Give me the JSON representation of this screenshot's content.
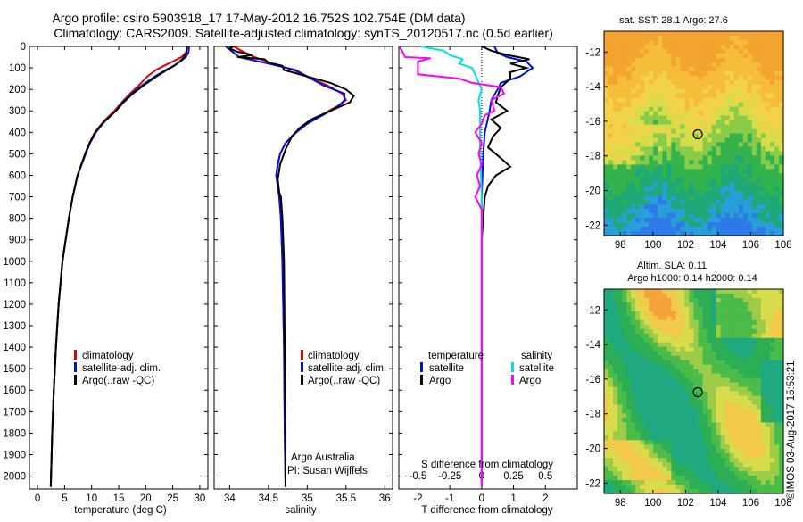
{
  "header": {
    "line1": "Argo profile: csiro 5903918_17 17-May-2012 16.752S 102.754E (DM data)",
    "line2": "Climatology: CARS2009. Satellite-adjusted climatology: synTS_20120517.nc (0.5d earlier)"
  },
  "credit": "©IMOS 03-Aug-2017 15:53:21",
  "colors": {
    "climatology": "#e00000",
    "satellite": "#0010e0",
    "argo": "#000000",
    "sal_satellite": "#00e0e0",
    "sal_argo": "#ff00ff"
  },
  "chart_data": [
    {
      "type": "line",
      "panel": "temperature",
      "xlabel": "temperature (deg C)",
      "ylabel": "",
      "xlim": [
        -1.5,
        31.5
      ],
      "ylim": [
        0,
        2060
      ],
      "xticks": [
        "0",
        "5",
        "10",
        "15",
        "20",
        "25",
        "30"
      ],
      "xtick_values": [
        0,
        5,
        10,
        15,
        20,
        25,
        30
      ],
      "yticks": [
        "0",
        "100",
        "200",
        "300",
        "400",
        "500",
        "600",
        "700",
        "800",
        "900",
        "1000",
        "1100",
        "1200",
        "1300",
        "1400",
        "1500",
        "1600",
        "1700",
        "1800",
        "1900",
        "2000"
      ],
      "ytick_values": [
        0,
        100,
        200,
        300,
        400,
        500,
        600,
        700,
        800,
        900,
        1000,
        1100,
        1200,
        1300,
        1400,
        1500,
        1600,
        1700,
        1800,
        1900,
        2000
      ],
      "legend": [
        "climatology",
        "satellite-adj. clim.",
        "Argo(..raw -QC)"
      ],
      "series": [
        {
          "name": "climatology",
          "color": "#e00000",
          "depth": [
            0,
            10,
            30,
            50,
            70,
            90,
            110,
            140,
            180,
            220,
            260,
            300,
            350,
            400,
            450,
            500,
            600,
            700,
            800,
            900,
            1000,
            1200,
            1400,
            1600,
            1800,
            2000,
            2050
          ],
          "values": [
            27.6,
            27.6,
            27.4,
            26.6,
            25.0,
            23.4,
            21.9,
            20.3,
            18.8,
            17.1,
            15.6,
            14.2,
            12.2,
            10.6,
            9.6,
            8.8,
            7.4,
            6.5,
            5.8,
            5.2,
            4.6,
            3.9,
            3.4,
            3.0,
            2.7,
            2.5,
            2.45
          ]
        },
        {
          "name": "satellite-adj. clim.",
          "color": "#0010e0",
          "depth": [
            0,
            10,
            30,
            50,
            70,
            90,
            110,
            140,
            180,
            220,
            260,
            300,
            350,
            400,
            450,
            500,
            600,
            700,
            800,
            900,
            1000,
            1200,
            1400,
            1600,
            1800,
            2000,
            2050
          ],
          "values": [
            28.0,
            28.0,
            27.9,
            27.4,
            26.4,
            25.2,
            23.7,
            21.7,
            19.4,
            17.4,
            15.8,
            14.5,
            12.4,
            10.8,
            9.7,
            8.9,
            7.4,
            6.5,
            5.8,
            5.2,
            4.6,
            3.9,
            3.4,
            3.0,
            2.7,
            2.5,
            2.45
          ]
        },
        {
          "name": "Argo(..raw -QC)",
          "color": "#000000",
          "depth": [
            0,
            10,
            30,
            50,
            70,
            90,
            110,
            140,
            180,
            220,
            260,
            300,
            350,
            400,
            450,
            500,
            600,
            700,
            800,
            900,
            1000,
            1200,
            1400,
            1600,
            1800,
            2000,
            2050
          ],
          "values": [
            27.6,
            27.6,
            27.5,
            27.1,
            26.3,
            25.3,
            23.9,
            22.0,
            19.7,
            17.6,
            15.9,
            14.5,
            12.3,
            10.7,
            9.6,
            8.8,
            7.4,
            6.5,
            5.8,
            5.2,
            4.6,
            3.9,
            3.4,
            3.0,
            2.7,
            2.5,
            2.45
          ]
        }
      ]
    },
    {
      "type": "line",
      "panel": "salinity",
      "xlabel": "salinity",
      "xlim": [
        33.8,
        36.1
      ],
      "ylim": [
        0,
        2060
      ],
      "xticks": [
        "34",
        "34.5",
        "35",
        "35.5",
        "36"
      ],
      "xtick_values": [
        34,
        34.5,
        35,
        35.5,
        36
      ],
      "legend": [
        "climatology",
        "satellite-adj. clim.",
        "Argo(..raw -QC)"
      ],
      "annotation": [
        "Argo Australia",
        "PI: Susan Wijffels"
      ],
      "series": [
        {
          "name": "climatology",
          "color": "#e00000",
          "depth": [
            0,
            20,
            50,
            80,
            110,
            150,
            180,
            220,
            250,
            280,
            320,
            360,
            400,
            450,
            500,
            550,
            600,
            650,
            700,
            800,
            1000,
            1400,
            1800,
            2050
          ],
          "values": [
            34.05,
            34.15,
            34.32,
            34.55,
            34.82,
            35.05,
            35.25,
            35.45,
            35.5,
            35.38,
            35.18,
            35.0,
            34.85,
            34.72,
            34.65,
            34.62,
            34.6,
            34.62,
            34.64,
            34.66,
            34.68,
            34.7,
            34.71,
            34.72
          ]
        },
        {
          "name": "satellite-adj. clim.",
          "color": "#0010e0",
          "depth": [
            0,
            20,
            50,
            80,
            110,
            150,
            180,
            220,
            250,
            280,
            320,
            360,
            400,
            450,
            500,
            550,
            600,
            650,
            700,
            800,
            1000,
            1400,
            1800,
            2050
          ],
          "values": [
            33.95,
            34.02,
            34.12,
            34.5,
            34.85,
            35.05,
            35.2,
            35.48,
            35.48,
            35.4,
            35.2,
            35.0,
            34.86,
            34.72,
            34.65,
            34.62,
            34.6,
            34.62,
            34.64,
            34.66,
            34.68,
            34.7,
            34.71,
            34.72
          ]
        },
        {
          "name": "Argo(..raw -QC)",
          "color": "#000000",
          "depth": [
            0,
            10,
            25,
            40,
            50,
            60,
            75,
            90,
            110,
            140,
            170,
            200,
            230,
            260,
            300,
            340,
            380,
            420,
            480,
            550,
            620,
            680,
            700,
            800,
            1000,
            1400,
            1800,
            2050
          ],
          "values": [
            34.05,
            34.0,
            34.1,
            34.3,
            34.1,
            34.45,
            34.5,
            34.68,
            34.7,
            35.0,
            35.3,
            35.5,
            35.6,
            35.55,
            35.3,
            35.05,
            34.9,
            34.8,
            34.72,
            34.65,
            34.62,
            34.64,
            34.66,
            34.68,
            34.7,
            34.71,
            34.72,
            34.72
          ]
        }
      ]
    },
    {
      "type": "line",
      "panel": "difference",
      "xlabel": "T difference from climatology",
      "xlabel_top": "S difference from climatology",
      "xlim": [
        -2.6,
        3.0
      ],
      "ylim": [
        0,
        2060
      ],
      "xticks": [
        "-2",
        "-1",
        "0",
        "1",
        "2"
      ],
      "xtick_values": [
        -2,
        -1,
        0,
        1,
        2
      ],
      "sticks": [
        "-0.5",
        "-0.25",
        "0",
        "0.25",
        "0.5"
      ],
      "stick_values": [
        -0.5,
        -0.25,
        0,
        0.25,
        0.5
      ],
      "legend_temperature": {
        "heading": "temperature",
        "items": [
          "satellite",
          "Argo"
        ]
      },
      "legend_salinity": {
        "heading": "salinity",
        "items": [
          "satellite",
          "Argo"
        ]
      },
      "series": [
        {
          "name": "T satellite",
          "color": "#0010e0",
          "depth": [
            0,
            30,
            50,
            70,
            100,
            140,
            170,
            200,
            250,
            300,
            400,
            500,
            700,
            900,
            1200,
            2050
          ],
          "values": [
            0.4,
            0.5,
            0.8,
            1.4,
            1.6,
            1.2,
            0.6,
            0.5,
            0.3,
            0.25,
            0.1,
            0.05,
            0.0,
            0.0,
            0.0,
            0.0
          ]
        },
        {
          "name": "T Argo",
          "color": "#000000",
          "depth": [
            0,
            20,
            40,
            60,
            80,
            100,
            120,
            150,
            190,
            230,
            260,
            300,
            340,
            380,
            420,
            470,
            520,
            560,
            600,
            650,
            700,
            800,
            900,
            1000,
            1200,
            2050
          ],
          "values": [
            0.0,
            0.3,
            0.8,
            1.5,
            0.9,
            1.4,
            0.9,
            0.9,
            0.6,
            0.5,
            0.45,
            0.8,
            0.3,
            0.6,
            0.35,
            0.2,
            0.6,
            0.9,
            0.45,
            0.2,
            0.1,
            0.05,
            0.0,
            0.0,
            0.0,
            0.0
          ]
        },
        {
          "name": "S satellite",
          "color": "#00e0e0",
          "depth": [
            0,
            20,
            40,
            60,
            80,
            100,
            150,
            200,
            250,
            300,
            400,
            500,
            700,
            900,
            1200,
            2050
          ],
          "values": [
            -1.9,
            -1.2,
            -1.0,
            -0.6,
            -0.7,
            -0.3,
            -0.15,
            0.0,
            -0.1,
            -0.05,
            -0.05,
            -0.05,
            0.0,
            0.0,
            0.0,
            0.0
          ]
        },
        {
          "name": "S Argo",
          "color": "#ff00ff",
          "depth": [
            0,
            20,
            50,
            55,
            70,
            100,
            130,
            150,
            170,
            190,
            220,
            250,
            300,
            320,
            360,
            400,
            450,
            500,
            550,
            600,
            650,
            700,
            760,
            900,
            1200,
            2050
          ],
          "values": [
            -2.6,
            -2.5,
            -2.4,
            -1.6,
            -2.0,
            -2.0,
            -2.0,
            -0.7,
            -0.3,
            0.6,
            0.7,
            0.3,
            0.4,
            0.1,
            0.0,
            -0.2,
            0.0,
            -0.1,
            0.0,
            -0.15,
            -0.05,
            -0.2,
            0.0,
            0.0,
            0.0,
            0.0
          ]
        }
      ]
    },
    {
      "type": "heatmap",
      "panel": "map-sst",
      "title": "sat. SST: 28.1  Argo: 27.6",
      "xlim": [
        97,
        108
      ],
      "ylim": [
        -22.6,
        -10.8
      ],
      "xticks": [
        "98",
        "100",
        "102",
        "104",
        "106",
        "108"
      ],
      "xtick_values": [
        98,
        100,
        102,
        104,
        106,
        108
      ],
      "yticks": [
        "-12",
        "-14",
        "-16",
        "-18",
        "-20",
        "-22"
      ],
      "ytick_values": [
        -12,
        -14,
        -16,
        -18,
        -20,
        -22
      ],
      "marker": {
        "lon": 102.754,
        "lat": -16.752
      }
    },
    {
      "type": "heatmap",
      "panel": "map-sla",
      "title_line1": "Altim. SLA: 0.11",
      "title_line2": "Argo h1000: 0.14  h2000: 0.14",
      "xlim": [
        97,
        108
      ],
      "ylim": [
        -22.6,
        -10.8
      ],
      "xticks": [
        "98",
        "100",
        "102",
        "104",
        "106",
        "108"
      ],
      "xtick_values": [
        98,
        100,
        102,
        104,
        106,
        108
      ],
      "yticks": [
        "-12",
        "-14",
        "-16",
        "-18",
        "-20",
        "-22"
      ],
      "ytick_values": [
        -12,
        -14,
        -16,
        -18,
        -20,
        -22
      ],
      "marker": {
        "lon": 102.754,
        "lat": -16.752
      }
    }
  ]
}
